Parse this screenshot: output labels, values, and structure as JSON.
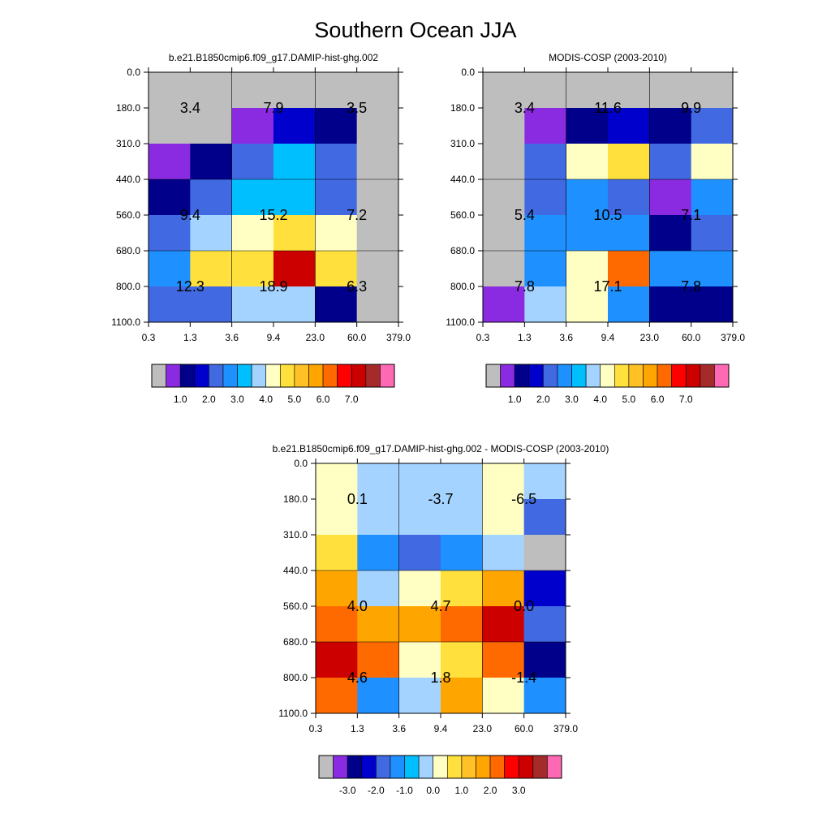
{
  "chart_data": {
    "title": "Southern Ocean JJA",
    "panels": [
      {
        "type": "heatmap",
        "title": "b.e21.B1850cmip6.f09_g17.DAMIP-hist-ghg.002",
        "xlabel": "",
        "ylabel": "",
        "x_ticks": [
          "0.3",
          "1.3",
          "3.6",
          "9.4",
          "23.0",
          "60.0",
          "379.0"
        ],
        "y_ticks": [
          "0.0",
          "180.0",
          "310.0",
          "440.0",
          "560.0",
          "680.0",
          "800.0",
          "1100.0"
        ],
        "cell_colors": [
          [
            "#BEBEBE",
            "#BEBEBE",
            "#BEBEBE",
            "#BEBEBE",
            "#BEBEBE",
            "#BEBEBE"
          ],
          [
            "#BEBEBE",
            "#BEBEBE",
            "#8A2BE2",
            "#0000CD",
            "#00008B",
            "#BEBEBE"
          ],
          [
            "#8A2BE2",
            "#00008B",
            "#4169E1",
            "#00BFFF",
            "#4169E1",
            "#BEBEBE"
          ],
          [
            "#00008B",
            "#4169E1",
            "#00BFFF",
            "#00BFFF",
            "#4169E1",
            "#BEBEBE"
          ],
          [
            "#4169E1",
            "#A4D3FF",
            "#FFFFC4",
            "#FFE03C",
            "#FFFFC4",
            "#BEBEBE"
          ],
          [
            "#1E90FF",
            "#FFE03C",
            "#FFE03C",
            "#CD0000",
            "#FFE03C",
            "#BEBEBE"
          ],
          [
            "#4169E1",
            "#4169E1",
            "#A4D3FF",
            "#A4D3FF",
            "#00008B",
            "#BEBEBE"
          ]
        ],
        "annotations": [
          [
            "3.4",
            "7.9",
            "3.5"
          ],
          [
            "9.4",
            "15.2",
            "7.2"
          ],
          [
            "12.3",
            "18.9",
            "6.3"
          ]
        ],
        "colorbar": {
          "colors": [
            "#BEBEBE",
            "#8A2BE2",
            "#00008B",
            "#0000CD",
            "#4169E1",
            "#1E90FF",
            "#00BFFF",
            "#A4D3FF",
            "#FFFFC4",
            "#FFE03C",
            "#FFC125",
            "#FFA500",
            "#FF6A00",
            "#FF0000",
            "#CD0000",
            "#A52A2A",
            "#FF69B4"
          ],
          "labels": [
            "1.0",
            "2.0",
            "3.0",
            "4.0",
            "5.0",
            "6.0",
            "7.0"
          ]
        }
      },
      {
        "type": "heatmap",
        "title": "MODIS-COSP (2003-2010)",
        "xlabel": "",
        "ylabel": "",
        "x_ticks": [
          "0.3",
          "1.3",
          "3.6",
          "9.4",
          "23.0",
          "60.0",
          "379.0"
        ],
        "y_ticks": [
          "0.0",
          "180.0",
          "310.0",
          "440.0",
          "560.0",
          "680.0",
          "800.0",
          "1100.0"
        ],
        "cell_colors": [
          [
            "#BEBEBE",
            "#BEBEBE",
            "#BEBEBE",
            "#BEBEBE",
            "#BEBEBE",
            "#BEBEBE"
          ],
          [
            "#BEBEBE",
            "#8A2BE2",
            "#00008B",
            "#0000CD",
            "#00008B",
            "#4169E1"
          ],
          [
            "#BEBEBE",
            "#4169E1",
            "#FFFFC4",
            "#FFE03C",
            "#4169E1",
            "#FFFFC4"
          ],
          [
            "#BEBEBE",
            "#4169E1",
            "#1E90FF",
            "#4169E1",
            "#8A2BE2",
            "#1E90FF"
          ],
          [
            "#BEBEBE",
            "#1E90FF",
            "#1E90FF",
            "#1E90FF",
            "#00008B",
            "#4169E1"
          ],
          [
            "#BEBEBE",
            "#1E90FF",
            "#FFFFC4",
            "#FF6A00",
            "#1E90FF",
            "#1E90FF"
          ],
          [
            "#8A2BE2",
            "#A4D3FF",
            "#FFFFC4",
            "#1E90FF",
            "#00008B",
            "#00008B"
          ]
        ],
        "annotations": [
          [
            "3.4",
            "11.6",
            "9.9"
          ],
          [
            "5.4",
            "10.5",
            "7.1"
          ],
          [
            "7.8",
            "17.1",
            "7.8"
          ]
        ],
        "colorbar": {
          "colors": [
            "#BEBEBE",
            "#8A2BE2",
            "#00008B",
            "#0000CD",
            "#4169E1",
            "#1E90FF",
            "#00BFFF",
            "#A4D3FF",
            "#FFFFC4",
            "#FFE03C",
            "#FFC125",
            "#FFA500",
            "#FF6A00",
            "#FF0000",
            "#CD0000",
            "#A52A2A",
            "#FF69B4"
          ],
          "labels": [
            "1.0",
            "2.0",
            "3.0",
            "4.0",
            "5.0",
            "6.0",
            "7.0"
          ]
        }
      },
      {
        "type": "heatmap",
        "title": "b.e21.B1850cmip6.f09_g17.DAMIP-hist-ghg.002 - MODIS-COSP (2003-2010)",
        "xlabel": "",
        "ylabel": "",
        "x_ticks": [
          "0.3",
          "1.3",
          "3.6",
          "9.4",
          "23.0",
          "60.0",
          "379.0"
        ],
        "y_ticks": [
          "0.0",
          "180.0",
          "310.0",
          "440.0",
          "560.0",
          "680.0",
          "800.0",
          "1100.0"
        ],
        "cell_colors": [
          [
            "#FFFFC4",
            "#A4D3FF",
            "#A4D3FF",
            "#A4D3FF",
            "#FFFFC4",
            "#A4D3FF"
          ],
          [
            "#FFFFC4",
            "#A4D3FF",
            "#A4D3FF",
            "#A4D3FF",
            "#FFFFC4",
            "#4169E1"
          ],
          [
            "#FFE03C",
            "#1E90FF",
            "#4169E1",
            "#1E90FF",
            "#A4D3FF",
            "#BEBEBE"
          ],
          [
            "#FFA500",
            "#A4D3FF",
            "#FFFFC4",
            "#FFE03C",
            "#FFA500",
            "#0000CD"
          ],
          [
            "#FF6A00",
            "#FFA500",
            "#FFA500",
            "#FF6A00",
            "#CD0000",
            "#4169E1"
          ],
          [
            "#CD0000",
            "#FF6A00",
            "#FFFFC4",
            "#FFE03C",
            "#FF6A00",
            "#00008B"
          ],
          [
            "#FF6A00",
            "#1E90FF",
            "#A4D3FF",
            "#FFA500",
            "#FFFFC4",
            "#1E90FF"
          ]
        ],
        "annotations": [
          [
            "0.1",
            "-3.7",
            "-6.5"
          ],
          [
            "4.0",
            "4.7",
            "0.0"
          ],
          [
            "4.6",
            "1.8",
            "-1.4"
          ]
        ],
        "colorbar": {
          "colors": [
            "#BEBEBE",
            "#8A2BE2",
            "#00008B",
            "#0000CD",
            "#4169E1",
            "#1E90FF",
            "#00BFFF",
            "#A4D3FF",
            "#FFFFC4",
            "#FFE03C",
            "#FFC125",
            "#FFA500",
            "#FF6A00",
            "#FF0000",
            "#CD0000",
            "#A52A2A",
            "#FF69B4"
          ],
          "labels": [
            "-3.0",
            "-2.0",
            "-1.0",
            "0.0",
            "1.0",
            "2.0",
            "3.0"
          ]
        }
      }
    ]
  }
}
